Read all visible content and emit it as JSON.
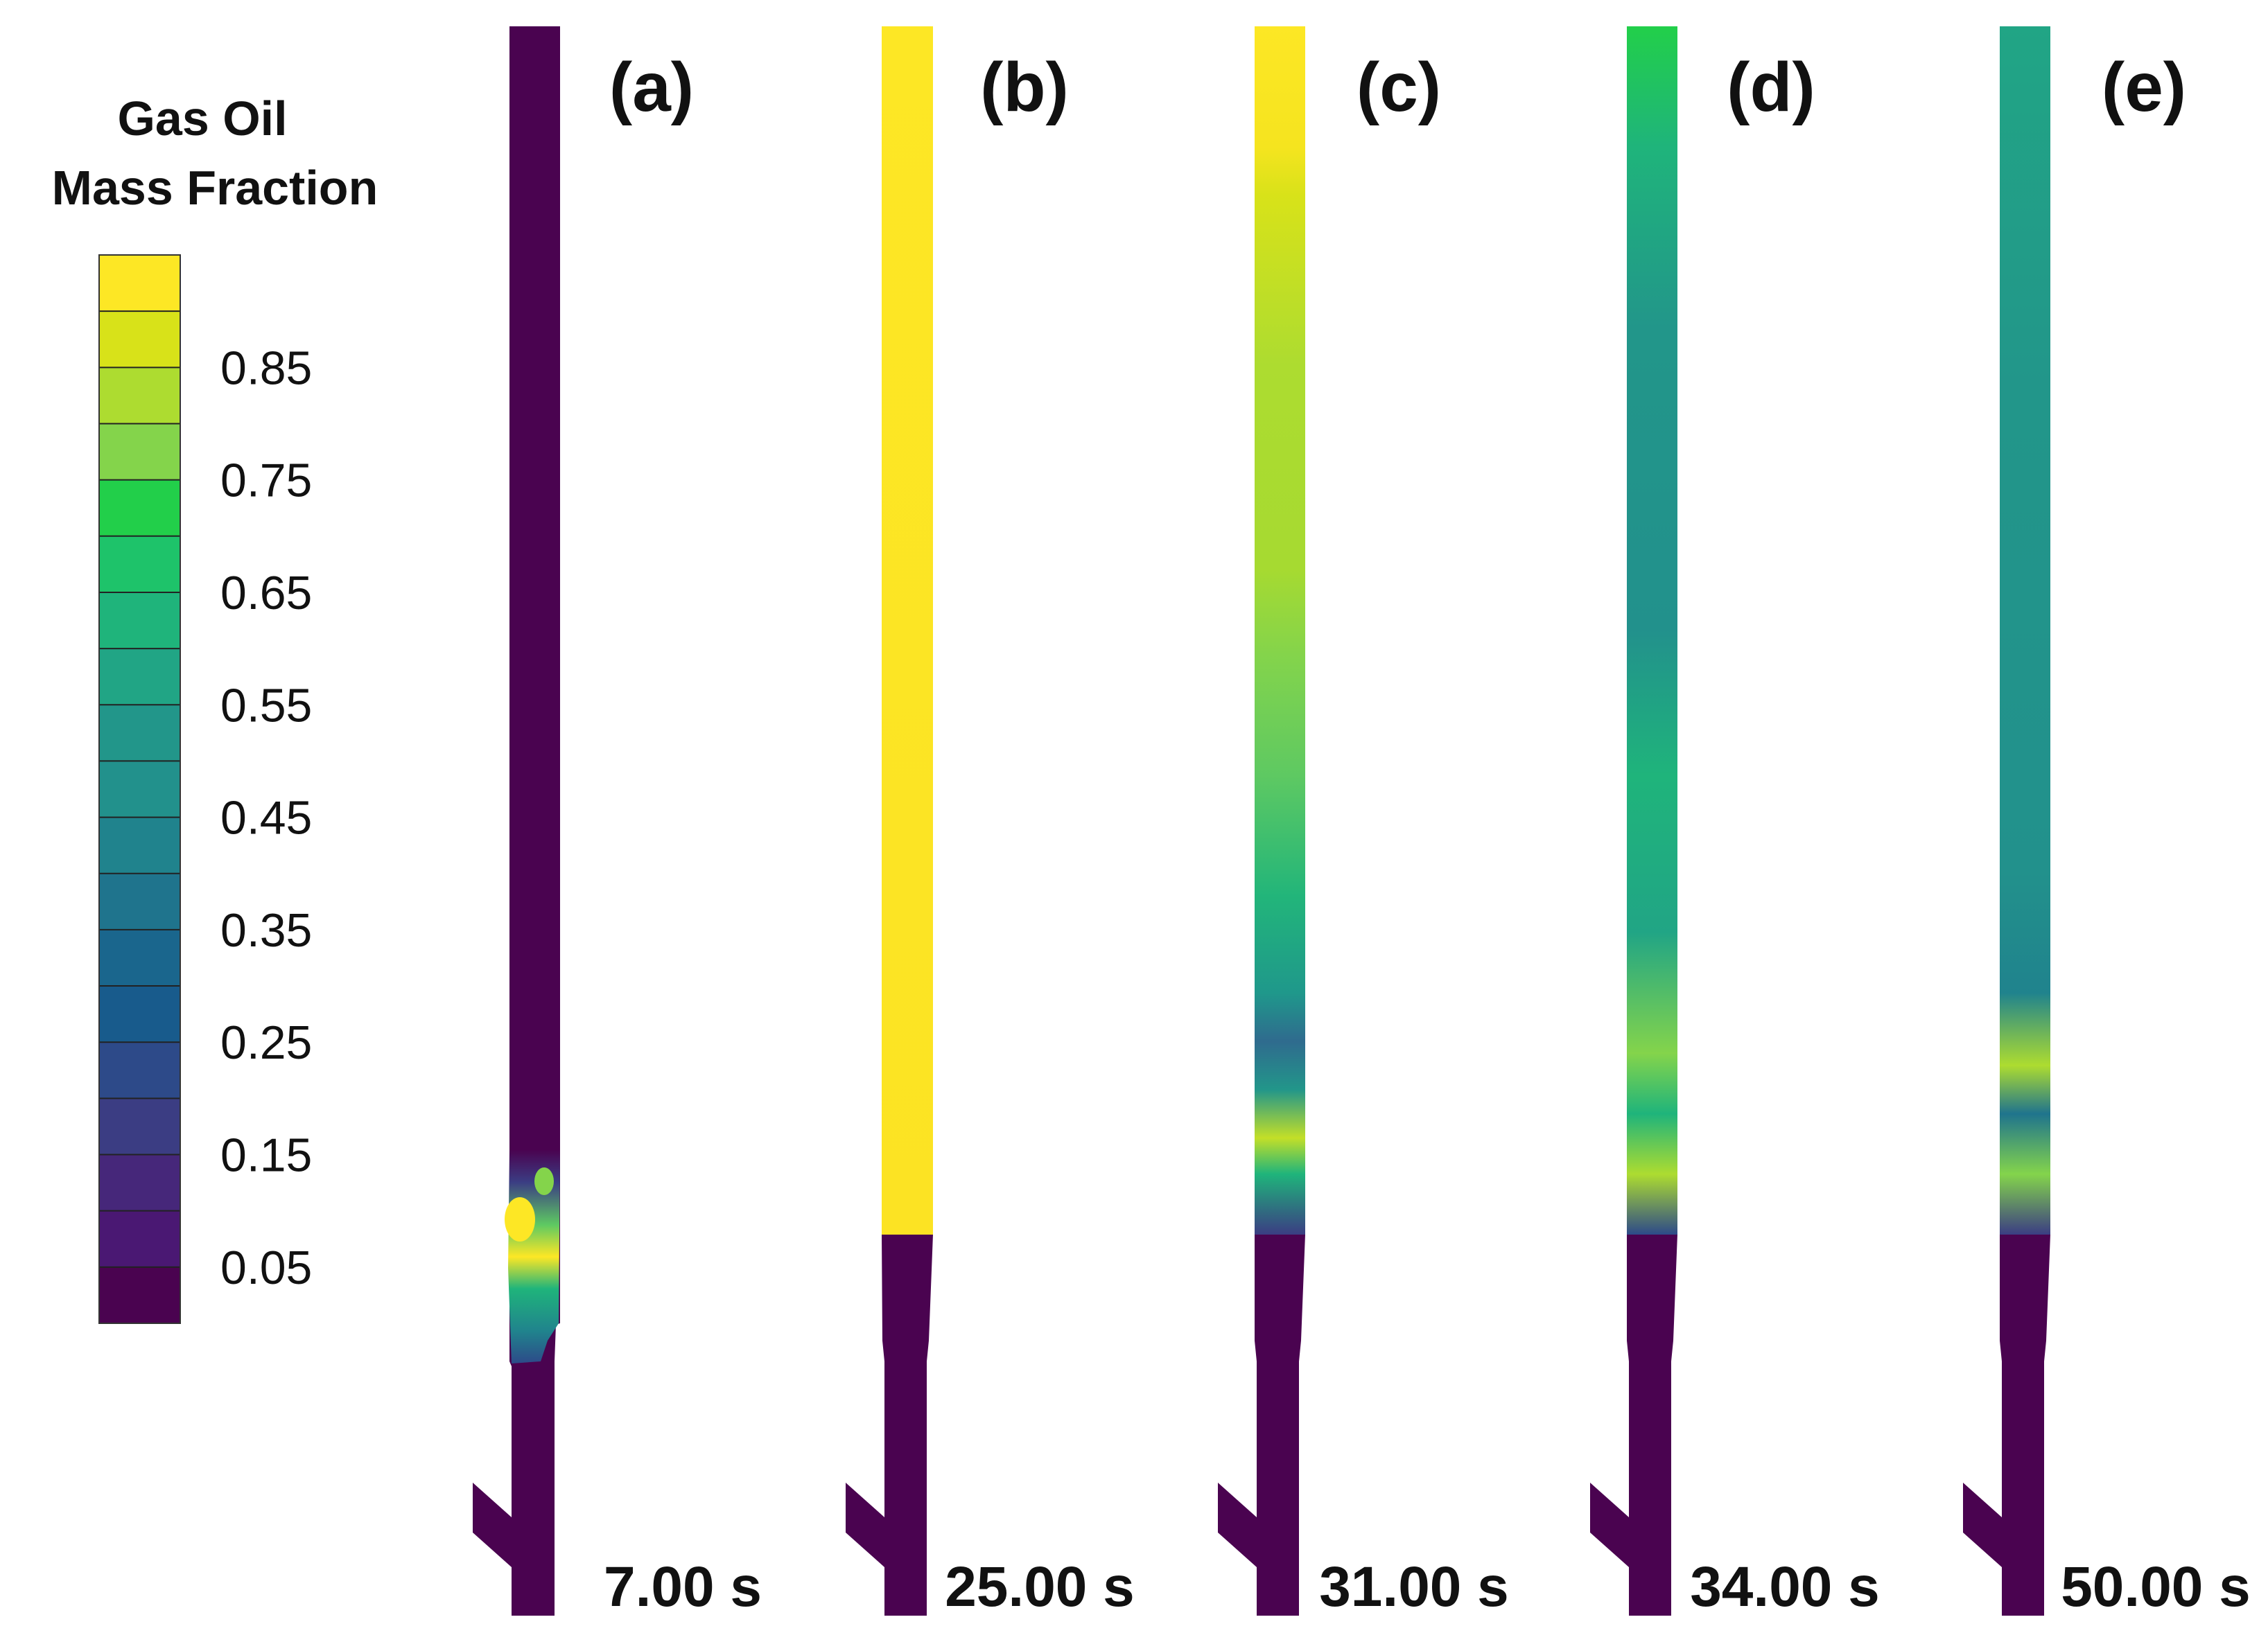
{
  "legend": {
    "title_line1": "Gas Oil",
    "title_line2": "Mass Fraction",
    "tick_labels": [
      "0.85",
      "0.75",
      "0.65",
      "0.55",
      "0.45",
      "0.35",
      "0.25",
      "0.15",
      "0.05"
    ],
    "levels": [
      {
        "value": 0.95,
        "color": "#fde725"
      },
      {
        "value": 0.9,
        "color": "#d8e219"
      },
      {
        "value": 0.85,
        "color": "#addc30"
      },
      {
        "value": 0.8,
        "color": "#84d44b"
      },
      {
        "value": 0.75,
        "color": "#22cf4a"
      },
      {
        "value": 0.7,
        "color": "#1ec36a"
      },
      {
        "value": 0.65,
        "color": "#1fb47b"
      },
      {
        "value": 0.6,
        "color": "#21a585"
      },
      {
        "value": 0.55,
        "color": "#22968a"
      },
      {
        "value": 0.5,
        "color": "#22918c"
      },
      {
        "value": 0.45,
        "color": "#20838d"
      },
      {
        "value": 0.4,
        "color": "#1f748d"
      },
      {
        "value": 0.35,
        "color": "#1a668d"
      },
      {
        "value": 0.3,
        "color": "#185b8c"
      },
      {
        "value": 0.25,
        "color": "#2d4a89"
      },
      {
        "value": 0.2,
        "color": "#3b3d83"
      },
      {
        "value": 0.15,
        "color": "#46277a"
      },
      {
        "value": 0.1,
        "color": "#4a1873"
      },
      {
        "value": 0.05,
        "color": "#4a0350"
      }
    ]
  },
  "panels": [
    {
      "label": "(a)",
      "time": "7.00 s"
    },
    {
      "label": "(b)",
      "time": "25.00 s"
    },
    {
      "label": "(c)",
      "time": "31.00 s"
    },
    {
      "label": "(d)",
      "time": "34.00 s"
    },
    {
      "label": "(e)",
      "time": "50.00 s"
    }
  ],
  "colors": {
    "low": "#4a0350",
    "high": "#fde725"
  }
}
